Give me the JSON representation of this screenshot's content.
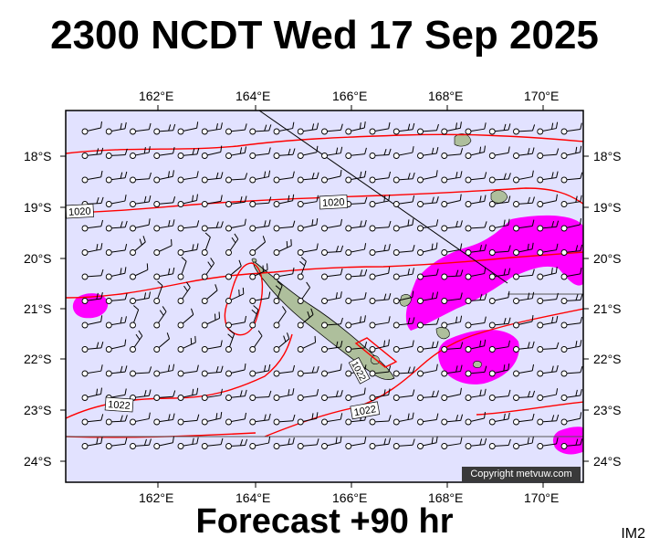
{
  "title": "2300 NCDT Wed 17 Sep 2025",
  "subtitle": "Forecast +90 hr",
  "product_code": "IM2",
  "copyright": "Copyright metvuw.com",
  "colors": {
    "sea": "#e2e2ff",
    "land": "#aebf9c",
    "isobar": "#ff0000",
    "rain": "#ff00ff",
    "wind_barb": "#000000"
  },
  "map": {
    "region": "New Caledonia",
    "lon_range": [
      160.0,
      171.0
    ],
    "lat_range": [
      -24.4,
      -17.0
    ],
    "lon_ticks": [
      "162°E",
      "164°E",
      "166°E",
      "168°E",
      "170°E"
    ],
    "lat_ticks": [
      "18°S",
      "19°S",
      "20°S",
      "21°S",
      "22°S",
      "23°S",
      "24°S"
    ],
    "isobar_labels": [
      "1020",
      "1020",
      "1022",
      "1022",
      "1022"
    ],
    "wind_barb_icon": "wind-barb-icon"
  }
}
